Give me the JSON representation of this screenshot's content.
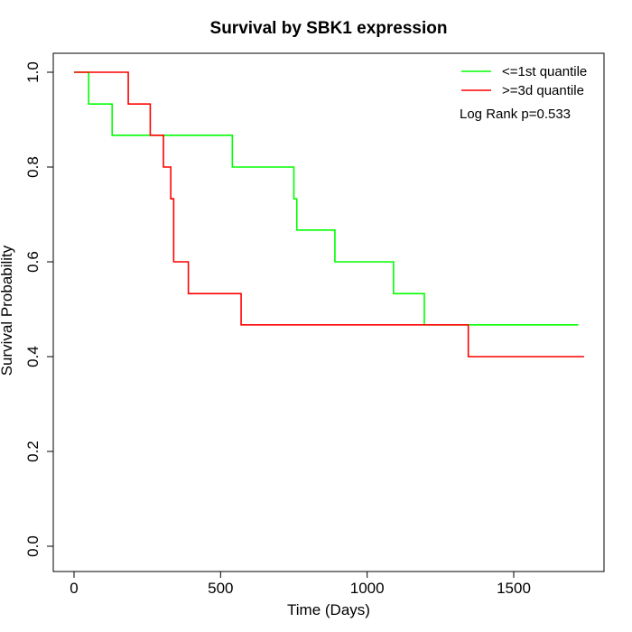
{
  "chart_data": {
    "type": "line",
    "title": "Survival by SBK1 expression",
    "xlabel": "Time (Days)",
    "ylabel": "Survival Probability",
    "xlim": [
      0,
      1800
    ],
    "ylim": [
      0,
      1.0
    ],
    "x_ticks": [
      0,
      500,
      1000,
      1500
    ],
    "x_tick_labels": [
      "0",
      "500",
      "1000",
      "1500"
    ],
    "y_ticks": [
      0.0,
      0.2,
      0.4,
      0.6,
      0.8,
      1.0
    ],
    "y_tick_labels": [
      "0.0",
      "0.2",
      "0.4",
      "0.6",
      "0.8",
      "1.0"
    ],
    "grid": false,
    "legend_position": "top-right",
    "annotation": "Log Rank p=0.533",
    "series": [
      {
        "name": "<=1st quantile",
        "color": "#00ff00",
        "step": true,
        "x": [
          0,
          50,
          130,
          540,
          750,
          760,
          890,
          1090,
          1195,
          1720
        ],
        "y": [
          1.0,
          0.933,
          0.867,
          0.8,
          0.733,
          0.667,
          0.6,
          0.533,
          0.467,
          0.467
        ]
      },
      {
        "name": ">=3d quantile",
        "color": "#ff0000",
        "step": true,
        "x": [
          0,
          185,
          260,
          305,
          330,
          340,
          390,
          570,
          1345,
          1740
        ],
        "y": [
          1.0,
          0.933,
          0.867,
          0.8,
          0.733,
          0.6,
          0.533,
          0.467,
          0.4,
          0.4
        ]
      }
    ]
  }
}
